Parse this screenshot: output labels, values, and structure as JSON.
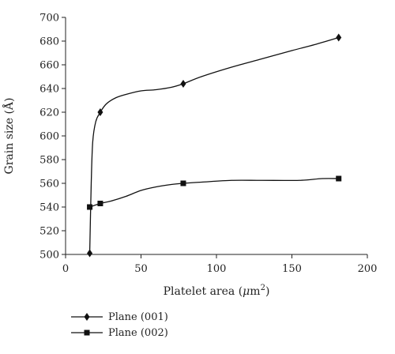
{
  "chart_data": {
    "type": "line",
    "title": "",
    "xlabel": "Platelet area (",
    "xlabel_unit_mu": "μ",
    "xlabel_unit_m": "m",
    "xlabel_unit_exp": "2",
    "xlabel_close": ")",
    "ylabel": "Grain size (Å)",
    "xlim": [
      0,
      200
    ],
    "ylim": [
      500,
      700
    ],
    "xticks": [
      0,
      50,
      100,
      150,
      200
    ],
    "yticks": [
      500,
      520,
      540,
      560,
      580,
      600,
      620,
      640,
      660,
      680,
      700
    ],
    "grid": false,
    "legend_position": "bottom-left",
    "series": [
      {
        "name": "Plane (001)",
        "marker": "diamond",
        "color": "#111111",
        "x": [
          16,
          23,
          78,
          181
        ],
        "y": [
          501,
          620,
          644,
          683
        ],
        "curve_x": [
          16,
          17,
          18,
          20,
          23,
          27,
          33,
          40,
          50,
          60,
          70,
          78,
          90,
          110,
          130,
          150,
          165,
          181
        ],
        "curve_y": [
          501,
          560,
          595,
          612,
          620,
          627,
          632,
          635,
          638,
          639,
          641,
          644,
          650,
          658,
          665,
          672,
          677,
          683
        ]
      },
      {
        "name": "Plane (002)",
        "marker": "square",
        "color": "#111111",
        "x": [
          16,
          23,
          78,
          181
        ],
        "y": [
          540,
          543,
          560,
          564
        ],
        "curve_x": [
          16,
          23,
          30,
          40,
          50,
          60,
          70,
          78,
          90,
          110,
          130,
          155,
          170,
          181
        ],
        "curve_y": [
          540,
          543,
          545,
          549,
          554,
          557,
          559,
          560,
          561,
          562.5,
          562.5,
          562.5,
          564,
          564
        ]
      }
    ]
  }
}
